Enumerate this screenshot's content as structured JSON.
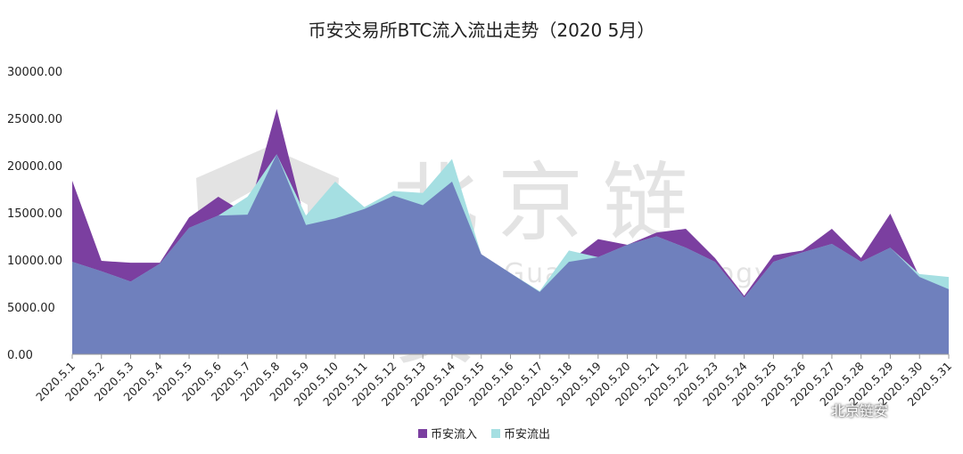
{
  "chart_data": {
    "type": "area",
    "title": "币安交易所BTC流入流出走势（2020 5月）",
    "ylim": [
      0,
      30000
    ],
    "yticks": [
      "30000.00",
      "25000.00",
      "20000.00",
      "15000.00",
      "10000.00",
      "5000.00",
      "0.00"
    ],
    "categories": [
      "2020.5.1",
      "2020.5.2",
      "2020.5.3",
      "2020.5.4",
      "2020.5.5",
      "2020.5.6",
      "2020.5.7",
      "2020.5.8",
      "2020.5.9",
      "2020.5.10",
      "2020.5.11",
      "2020.5.12",
      "2020.5.13",
      "2020.5.14",
      "2020.5.15",
      "2020.5.16",
      "2020.5.17",
      "2020.5.18",
      "2020.5.19",
      "2020.5.20",
      "2020.5.21",
      "2020.5.22",
      "2020.5.23",
      "2020.5.24",
      "2020.5.25",
      "2020.5.26",
      "2020.5.27",
      "2020.5.28",
      "2020.5.29",
      "2020.5.30",
      "2020.5.31"
    ],
    "series": [
      {
        "name": "币安流入",
        "color": "#7b3fa0",
        "values": [
          18400,
          9900,
          9700,
          9700,
          14500,
          16700,
          14800,
          26000,
          13700,
          14400,
          15400,
          16800,
          15800,
          18300,
          10600,
          8600,
          6600,
          9800,
          12200,
          11600,
          12900,
          13300,
          10200,
          6200,
          10500,
          11000,
          13300,
          10200,
          14900,
          8200,
          6900
        ]
      },
      {
        "name": "币安流出",
        "color": "#a5dfe2",
        "values": [
          9800,
          8800,
          7700,
          9600,
          13400,
          14700,
          16700,
          21200,
          14700,
          18300,
          15600,
          17300,
          17100,
          20700,
          10600,
          8600,
          6700,
          11000,
          10300,
          11600,
          12500,
          11300,
          9800,
          6000,
          9800,
          10800,
          11700,
          9800,
          11300,
          8500,
          8200
        ]
      }
    ],
    "legend_position": "bottom-center",
    "grid": false
  },
  "watermark": {
    "cn": "北京链安",
    "en": "Chains Guard Technology"
  },
  "footer_badge": {
    "text": "北京链安"
  }
}
